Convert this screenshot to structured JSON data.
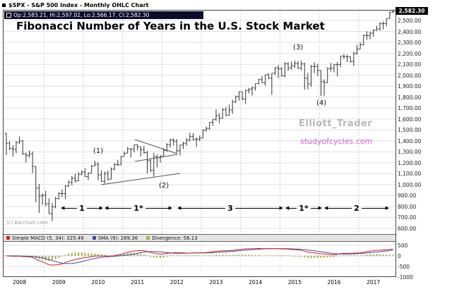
{
  "header": {
    "title": "$SPX - S&P 500 Index - Monthly OHLC Chart"
  },
  "quote_bar": {
    "text": "Op:2,583.21, Hi:2,597.02, Lo:2,566.17, Cl:2,582.30"
  },
  "last_price_badge": "2,582.30",
  "annotations": {
    "chart_title": "Fibonacci Number of Years in the U.S. Stock Market",
    "wave_labels": [
      "(1)",
      "(2)",
      "(3)",
      "(4)"
    ],
    "span_labels": [
      "1",
      "1*",
      "3",
      "1*",
      "2"
    ],
    "watermark_line1": "Elliott_Trader",
    "watermark_line2": "studyofcycles.com",
    "copyright": "(c) Barchart.com"
  },
  "indicator_legend": {
    "items": [
      {
        "label": "Simple MACD (5, 34): 325.49",
        "color": "#cc2222"
      },
      {
        "label": "SMA (9): 269.36",
        "color": "#4444aa"
      },
      {
        "label": "Divergence: 56.13",
        "color": "#a2b34c"
      }
    ]
  },
  "chart_data": {
    "type": "ohlc",
    "symbol": "$SPX",
    "period": "monthly",
    "x_start": "2008-01",
    "x_end": "2017-11",
    "y_axis": {
      "min": 600,
      "max": 2500,
      "tick_step": 100,
      "labels": [
        "2,500.00",
        "2,400.00",
        "2,300.00",
        "2,200.00",
        "2,100.00",
        "2,000.00",
        "1,900.00",
        "1,800.00",
        "1,700.00",
        "1,600.00",
        "1,500.00",
        "1,400.00",
        "1,300.00",
        "1,200.00",
        "1,100.00",
        "1,000.00",
        "900.00",
        "800.00",
        "700.00",
        "600.00"
      ]
    },
    "x_axis": {
      "year_labels": [
        "2008",
        "2009",
        "2010",
        "2011",
        "2012",
        "2013",
        "2014",
        "2015",
        "2016",
        "2017"
      ]
    },
    "last_quote": {
      "open": 2583.21,
      "high": 2597.02,
      "low": 2566.17,
      "close": 2582.3
    },
    "indicator": {
      "name": "Simple MACD",
      "fast": 5,
      "slow": 34,
      "signal": 9,
      "last_macd": 325.49,
      "last_signal": 269.36,
      "last_divergence": 56.13,
      "ylim": [
        -1000,
        500
      ],
      "y_ticks": [
        "500",
        "0",
        "-500",
        "-1000"
      ]
    },
    "ohlc": [
      [
        1468,
        1471,
        1270,
        1378
      ],
      [
        1378,
        1396,
        1316,
        1330
      ],
      [
        1330,
        1360,
        1256,
        1322
      ],
      [
        1322,
        1398,
        1286,
        1385
      ],
      [
        1385,
        1440,
        1373,
        1400
      ],
      [
        1400,
        1407,
        1272,
        1280
      ],
      [
        1280,
        1292,
        1200,
        1267
      ],
      [
        1267,
        1313,
        1247,
        1282
      ],
      [
        1282,
        1303,
        1106,
        1166
      ],
      [
        1166,
        1167,
        839,
        968
      ],
      [
        968,
        1007,
        741,
        896
      ],
      [
        896,
        918,
        815,
        903
      ],
      [
        903,
        943,
        804,
        825
      ],
      [
        825,
        875,
        734,
        735
      ],
      [
        735,
        832,
        666,
        797
      ],
      [
        797,
        888,
        783,
        872
      ],
      [
        872,
        930,
        866,
        919
      ],
      [
        919,
        956,
        888,
        919
      ],
      [
        919,
        996,
        869,
        987
      ],
      [
        987,
        1039,
        978,
        1020
      ],
      [
        1020,
        1080,
        991,
        1057
      ],
      [
        1057,
        1101,
        1019,
        1036
      ],
      [
        1036,
        1113,
        1029,
        1095
      ],
      [
        1095,
        1130,
        1085,
        1115
      ],
      [
        1115,
        1150,
        1071,
        1073
      ],
      [
        1073,
        1112,
        1044,
        1104
      ],
      [
        1104,
        1180,
        1104,
        1169
      ],
      [
        1169,
        1220,
        1169,
        1186
      ],
      [
        1186,
        1205,
        1040,
        1089
      ],
      [
        1089,
        1131,
        1028,
        1030
      ],
      [
        1030,
        1120,
        1010,
        1101
      ],
      [
        1101,
        1129,
        1039,
        1049
      ],
      [
        1049,
        1157,
        1049,
        1141
      ],
      [
        1141,
        1196,
        1131,
        1183
      ],
      [
        1183,
        1227,
        1173,
        1180
      ],
      [
        1180,
        1262,
        1180,
        1257
      ],
      [
        1257,
        1302,
        1257,
        1286
      ],
      [
        1286,
        1344,
        1286,
        1327
      ],
      [
        1327,
        1332,
        1249,
        1325
      ],
      [
        1325,
        1364,
        1294,
        1363
      ],
      [
        1363,
        1370,
        1311,
        1345
      ],
      [
        1345,
        1346,
        1258,
        1320
      ],
      [
        1320,
        1356,
        1282,
        1292
      ],
      [
        1292,
        1307,
        1101,
        1218
      ],
      [
        1218,
        1230,
        1114,
        1131
      ],
      [
        1131,
        1292,
        1074,
        1253
      ],
      [
        1253,
        1277,
        1158,
        1246
      ],
      [
        1246,
        1269,
        1202,
        1257
      ],
      [
        1257,
        1333,
        1257,
        1312
      ],
      [
        1312,
        1378,
        1300,
        1365
      ],
      [
        1365,
        1419,
        1340,
        1408
      ],
      [
        1408,
        1422,
        1357,
        1397
      ],
      [
        1397,
        1415,
        1291,
        1310
      ],
      [
        1310,
        1363,
        1266,
        1362
      ],
      [
        1362,
        1391,
        1325,
        1379
      ],
      [
        1379,
        1426,
        1354,
        1406
      ],
      [
        1406,
        1474,
        1396,
        1440
      ],
      [
        1440,
        1470,
        1403,
        1412
      ],
      [
        1412,
        1434,
        1343,
        1416
      ],
      [
        1416,
        1448,
        1398,
        1426
      ],
      [
        1426,
        1503,
        1426,
        1498
      ],
      [
        1498,
        1531,
        1485,
        1514
      ],
      [
        1514,
        1570,
        1501,
        1569
      ],
      [
        1569,
        1597,
        1536,
        1597
      ],
      [
        1597,
        1687,
        1581,
        1630
      ],
      [
        1630,
        1654,
        1560,
        1606
      ],
      [
        1606,
        1698,
        1604,
        1685
      ],
      [
        1685,
        1709,
        1627,
        1632
      ],
      [
        1632,
        1730,
        1632,
        1681
      ],
      [
        1681,
        1775,
        1646,
        1756
      ],
      [
        1756,
        1813,
        1746,
        1805
      ],
      [
        1805,
        1849,
        1767,
        1848
      ],
      [
        1848,
        1851,
        1770,
        1782
      ],
      [
        1782,
        1868,
        1737,
        1859
      ],
      [
        1859,
        1883,
        1834,
        1872
      ],
      [
        1872,
        1897,
        1814,
        1883
      ],
      [
        1883,
        1924,
        1859,
        1923
      ],
      [
        1923,
        1968,
        1915,
        1960
      ],
      [
        1960,
        1991,
        1930,
        1930
      ],
      [
        1930,
        2005,
        1904,
        2003
      ],
      [
        2003,
        2019,
        1964,
        1972
      ],
      [
        1972,
        2018,
        1820,
        2018
      ],
      [
        2018,
        2075,
        2001,
        2067
      ],
      [
        2067,
        2093,
        1972,
        2058
      ],
      [
        2058,
        2072,
        1988,
        1994
      ],
      [
        1994,
        2119,
        1980,
        2104
      ],
      [
        2104,
        2117,
        2039,
        2067
      ],
      [
        2067,
        2125,
        2048,
        2085
      ],
      [
        2085,
        2134,
        2067,
        2107
      ],
      [
        2107,
        2129,
        2056,
        2063
      ],
      [
        2063,
        2132,
        2044,
        2103
      ],
      [
        2103,
        2112,
        1867,
        1972
      ],
      [
        1972,
        2020,
        1871,
        1920
      ],
      [
        1920,
        2094,
        1893,
        2079
      ],
      [
        2079,
        2116,
        2019,
        2080
      ],
      [
        2080,
        2104,
        1993,
        2043
      ],
      [
        2043,
        2043,
        1812,
        1940
      ],
      [
        1940,
        1962,
        1810,
        1932
      ],
      [
        1932,
        2072,
        1931,
        2059
      ],
      [
        2059,
        2111,
        2033,
        2065
      ],
      [
        2065,
        2103,
        2025,
        2096
      ],
      [
        2096,
        2120,
        1991,
        2098
      ],
      [
        2098,
        2177,
        2074,
        2173
      ],
      [
        2173,
        2193,
        2147,
        2170
      ],
      [
        2170,
        2187,
        2119,
        2168
      ],
      [
        2168,
        2169,
        2114,
        2126
      ],
      [
        2126,
        2214,
        2083,
        2198
      ],
      [
        2198,
        2277,
        2187,
        2238
      ],
      [
        2238,
        2300,
        2238,
        2278
      ],
      [
        2278,
        2371,
        2271,
        2363
      ],
      [
        2363,
        2400,
        2322,
        2362
      ],
      [
        2362,
        2398,
        2328,
        2384
      ],
      [
        2384,
        2418,
        2352,
        2411
      ],
      [
        2411,
        2453,
        2405,
        2423
      ],
      [
        2423,
        2484,
        2407,
        2470
      ],
      [
        2470,
        2490,
        2417,
        2471
      ],
      [
        2471,
        2519,
        2446,
        2519
      ],
      [
        2519,
        2582,
        2519,
        2575
      ],
      [
        2583.21,
        2597.02,
        2566.17,
        2582.3
      ]
    ]
  }
}
